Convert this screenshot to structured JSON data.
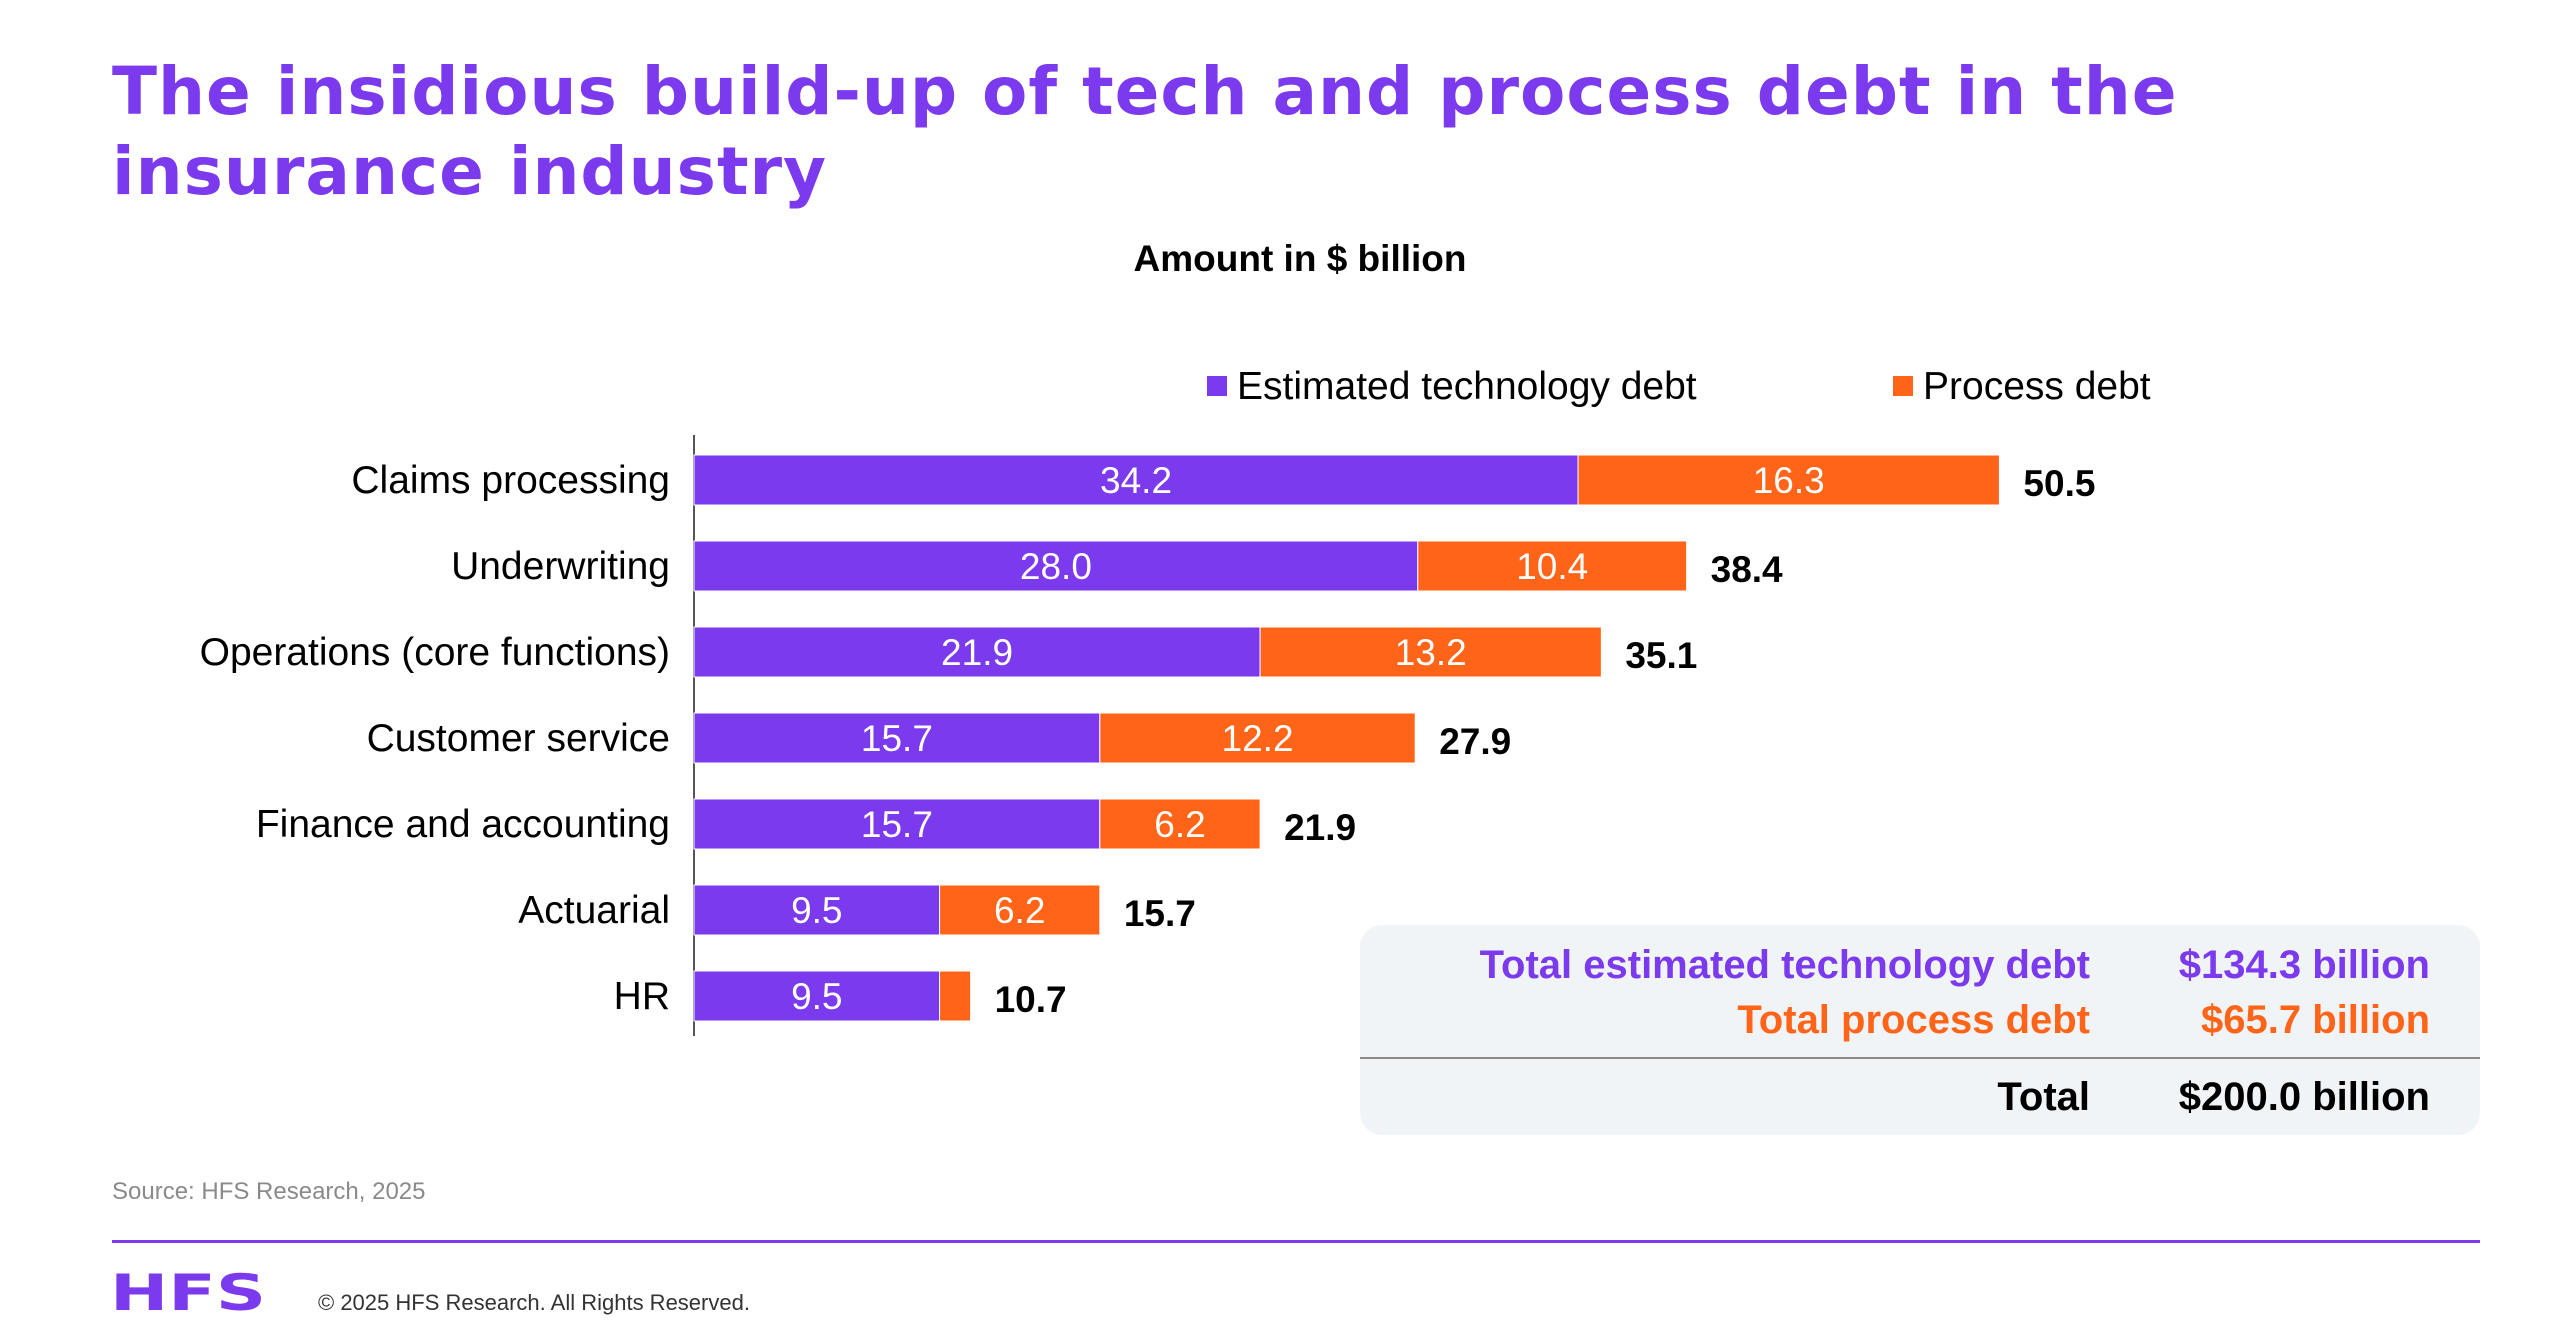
{
  "title": "The insidious build-up of tech and process debt in the insurance industry",
  "subtitle": "Amount in $ billion",
  "chart_data": {
    "type": "bar",
    "orientation": "horizontal",
    "stacked": true,
    "categories": [
      "Claims processing",
      "Underwriting",
      "Operations (core functions)",
      "Customer service",
      "Finance and accounting",
      "Actuarial",
      "HR"
    ],
    "series": [
      {
        "name": "Estimated technology debt",
        "color": "#7b3aed",
        "values": [
          34.2,
          28.0,
          21.9,
          15.7,
          15.7,
          9.5,
          9.5
        ],
        "labels": [
          "34.2",
          "28.0",
          "21.9",
          "15.7",
          "15.7",
          "9.5",
          "9.5"
        ]
      },
      {
        "name": "Process debt",
        "color": "#ff6418",
        "values": [
          16.3,
          10.4,
          13.2,
          12.2,
          6.2,
          6.2,
          1.2
        ],
        "labels": [
          "16.3",
          "10.4",
          "13.2",
          "12.2",
          "6.2",
          "6.2",
          ""
        ]
      }
    ],
    "totals": [
      "50.5",
      "38.4",
      "35.1",
      "27.9",
      "21.9",
      "15.7",
      "10.7"
    ],
    "title": "Amount in $ billion",
    "xlim": [
      0,
      55
    ],
    "legend": "top-right",
    "grid": false
  },
  "summary": {
    "tech_label": "Total estimated technology debt",
    "tech_value": "$134.3 billion",
    "process_label": "Total process debt",
    "process_value": "$65.7 billion",
    "total_label": "Total",
    "total_value": "$200.0 billion"
  },
  "source": "Source: HFS Research, 2025",
  "copyright": "© 2025 HFS Research. All Rights Reserved.",
  "logo_text": "HFS",
  "colors": {
    "tech": "#7b3aed",
    "process": "#ff6418",
    "brand": "#7b3aed"
  }
}
